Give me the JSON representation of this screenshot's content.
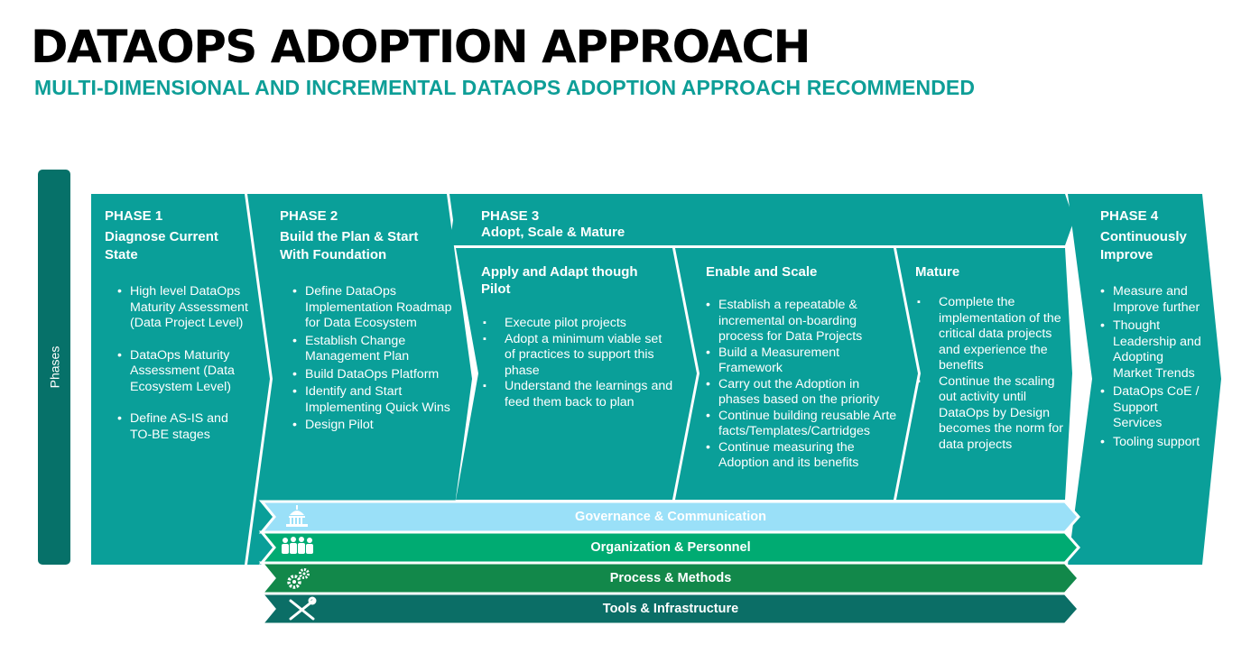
{
  "title": "DATAOPS ADOPTION APPROACH",
  "subtitle": "MULTI-DIMENSIONAL AND INCREMENTAL DATAOPS ADOPTION APPROACH RECOMMENDED",
  "side_label": "Phases",
  "colors": {
    "teal": "#0a9f99",
    "teal_dark": "#067169",
    "governance": "#9ae0f8",
    "organization": "#00ab72",
    "process": "#12884a",
    "tools": "#0b6e66",
    "subtitle": "#0e9e97"
  },
  "phase1": {
    "label": "PHASE 1",
    "name": "Diagnose Current State",
    "items": [
      "High level DataOps Maturity Assessment (Data Project Level)",
      "DataOps  Maturity Assessment (Data Ecosystem Level)",
      "Define AS-IS and TO-BE stages"
    ]
  },
  "phase2": {
    "label": "PHASE 2",
    "name": "Build the Plan & Start With Foundation",
    "items": [
      "Define DataOps Implementation Roadmap for Data Ecosystem",
      "Establish Change Management Plan",
      "Build DataOps  Platform",
      "Identify and Start Implementing Quick Wins",
      "Design Pilot"
    ]
  },
  "phase3": {
    "label": "PHASE 3",
    "name": "Adopt, Scale & Mature",
    "pilot": {
      "title": "Apply and Adapt though Pilot",
      "items": [
        "Execute pilot projects",
        "Adopt a minimum viable set of practices to support this phase",
        "Understand the learnings and feed them back to plan"
      ]
    },
    "scale": {
      "title": "Enable and Scale",
      "items": [
        "Establish a repeatable & incremental on-boarding process for Data Projects",
        "Build a Measurement Framework",
        "Carry out the Adoption in phases based on the priority",
        "Continue building reusable Artefacts/Templates/Cartridges",
        "Continue measuring the Adoption and its benefits"
      ]
    },
    "mature": {
      "title": "Mature",
      "items": [
        "Complete the implementation of the critical data projects and experience the benefits",
        "Continue the scaling out activity until DataOps  by Design becomes the norm for data projects"
      ]
    }
  },
  "phase4": {
    "label": "PHASE 4",
    "name": "Continuously Improve",
    "items": [
      "Measure and Improve further",
      "Thought Leadership and Adopting Market Trends",
      "DataOps  CoE / Support Services",
      "Tooling support"
    ]
  },
  "dimensions": [
    {
      "label": "Governance & Communication",
      "icon": "capitol-icon"
    },
    {
      "label": "Organization & Personnel",
      "icon": "people-icon"
    },
    {
      "label": "Process & Methods",
      "icon": "gears-icon"
    },
    {
      "label": "Tools & Infrastructure",
      "icon": "tools-icon"
    }
  ]
}
